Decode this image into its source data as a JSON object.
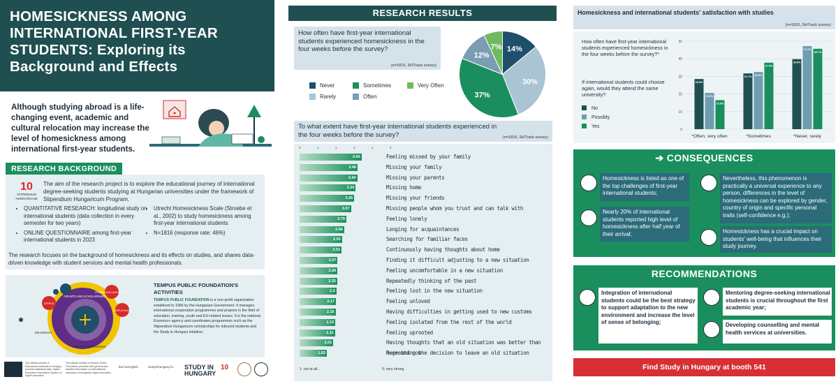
{
  "title": "HOMESICKNESS AMONG INTERNATIONAL FIRST-YEAR STUDENTS: Exploring its Background and Effects",
  "intro": "Although studying abroad is a life-changing event, academic and cultural relocation may increase the level of homesickness among international first-year students.",
  "research_background": {
    "heading": "RESEARCH BACKGROUND",
    "logo_number": "10",
    "logo_caption": "STIPENDIUM HUNGARICUM",
    "aim": "The aim of the research project is to explore the educational journey of international degree-seeking students studying at Hungarian universities under the framework of Stipendium Hungaricum Program.",
    "bullets_left": [
      "QUANTITATIVE RESEARCH: longitudinal study on international students (data collection in every semester for two years)",
      "ONLINE QUESTIONNAIRE among first-year international students in 2023"
    ],
    "bullets_right": [
      "Utrecht Homesickness Scale (Stroebe et al., 2002) to study homesickness among first-year international students",
      "N=1816 (response rate: 46%)"
    ],
    "footer": "The research focuses on the background of homesickness and its effects on studies, and shares data-driven knowledge with student services and mental health professionals."
  },
  "tempus": {
    "title": "TEMPUS PUBLIC FOUNDATION'S ACTIVITIES",
    "text_lead": "TEMPUS PUBLIC FOUNDATION",
    "text": " is a non-profit organisation establised in 1996 by the Hungarian Government. It manages international cooperation programmes and projects in the field of education, training, youth and EU-related issues. It is the national Erasmus+ agency and coordinates programmes such as the Stipendium Hungaricum scholarships for inbound students and the Study in Hungary initiative.",
    "circle_center": "GRANTS AND SCHOLARSHIPS",
    "circle_knowledge": "KNOWLEDGE SHARING",
    "circle_erasmus": "ERASMUS+",
    "circle_stipendium": "STIPENDIUM HUNGARICUM",
    "circle_campus": "CAMPUS MUNDI",
    "circle_ceepus": "CEEPUS"
  },
  "footer": {
    "small_left": "The official website of Educational Authority in Hungary provides statistical data, Higher Education Information System on higher education.",
    "small_left2": "The official website of Tempus Public Foundation provides both general and detailed information on international education of Hungarian higher education.",
    "url1": "tka.hu/english",
    "url2": "studyinhungary.hu",
    "study_in": "STUDY IN",
    "hungary": "HUNGARY",
    "logo10": "10"
  },
  "results": {
    "heading": "RESEARCH RESULTS",
    "q1": "How often have first-year international students experienced homesickness in the four weeks before the survey?",
    "q1_src": "(n=1816, SHTrack survey)",
    "legend": [
      {
        "label": "Never",
        "color": "#1f4f6b"
      },
      {
        "label": "Sometimes",
        "color": "#1a8f5d"
      },
      {
        "label": "Very Often",
        "color": "#6fba5e"
      },
      {
        "label": "Rarely",
        "color": "#a9c4d3"
      },
      {
        "label": "Often",
        "color": "#7a9db3"
      }
    ],
    "q2": "To what extent have first-year international students experienced in the four weeks before the survey?",
    "q2_src": "(n=1816, SHTrack survey)",
    "scale_ticks": [
      "0",
      "1",
      "2",
      "3",
      "4",
      "5"
    ],
    "scale_low": "1: not at all...",
    "scale_high": "5: very strong"
  },
  "chart_data": [
    {
      "type": "pie",
      "categories": [
        "Never",
        "Rarely",
        "Sometimes",
        "Often",
        "Very Often"
      ],
      "values": [
        14,
        30,
        37,
        12,
        7
      ],
      "labels": [
        "14%",
        "30%",
        "37%",
        "12%",
        "7%"
      ]
    },
    {
      "type": "bar",
      "orientation": "horizontal",
      "xlim": [
        0,
        5
      ],
      "categories": [
        "Feeling missed by your family",
        "Missing your family",
        "Missing your parents",
        "Missing home",
        "Missing your friends",
        "Missing people whom you trust and can talk with",
        "Feeling lonely",
        "Longing for acquaintances",
        "Searching for familiar faces",
        "Continuously having thoughts about home",
        "Finding it difficult adjusting to a new situation",
        "Feeling uncomfortable in a new situation",
        "Repeatedly thinking of the past",
        "Feeling lost in the new situation",
        "Feeling unloved",
        "Having difficulties in getting used to new customs",
        "Feeling isolated from the rest of the world",
        "Feeling uprooted",
        "Having thoughts that an old situation was better than here and now",
        "Regretting the decision to leave an old situation"
      ],
      "values": [
        3.69,
        3.46,
        3.44,
        3.34,
        3.26,
        3.07,
        2.79,
        2.66,
        2.53,
        2.51,
        2.27,
        2.26,
        2.25,
        2.2,
        2.17,
        2.15,
        2.13,
        2.11,
        2.01,
        1.63
      ],
      "value_labels": [
        "3.69",
        "3.46",
        "3.44",
        "3.34",
        "3.26",
        "3.07",
        "2.79",
        "2.66",
        "2.53",
        "2.51",
        "2.27",
        "2.26",
        "2.25",
        "2.2",
        "2.17",
        "2.15",
        "2.13",
        "2.11",
        "2.01",
        "1.63"
      ]
    },
    {
      "type": "bar",
      "title": "Homesickness and international students' satisfaction with studies",
      "ylim": [
        0,
        50
      ],
      "yticks": [
        "0",
        "10",
        "20",
        "30",
        "40",
        "50"
      ],
      "categories": [
        "*Often, very often",
        "*Sometimes",
        "*Never, rarely"
      ],
      "series": [
        {
          "name": "No",
          "color": "#1f4f51",
          "values": [
            28.5,
            31.7,
            39.8
          ],
          "labels": [
            "28.5%",
            "31.7%",
            "39.8%"
          ]
        },
        {
          "name": "Possibly",
          "color": "#6f9db0",
          "values": [
            20.6,
            32.5,
            47.2
          ],
          "labels": [
            "20.6%",
            "32.5%",
            "47.2%"
          ]
        },
        {
          "name": "Yes",
          "color": "#1a8f5d",
          "values": [
            16.5,
            37.8,
            45.7
          ],
          "labels": [
            "16.5%",
            "37.8%",
            "45.7%"
          ]
        }
      ]
    }
  ],
  "satisfaction": {
    "title": "Homesickness and international students' satisfaction with studies",
    "src": "(n=1816, SHTrack survey)",
    "q1": "How often have first-year international students experienced homesickness in the four weeks before the survey?*",
    "q2": "If international students could choose again, would they attend the same university?",
    "legend": [
      "No",
      "Possibly",
      "Yes"
    ]
  },
  "consequences": {
    "heading": "CONSEQUENCES",
    "arrow": "➔",
    "items": [
      "Homesickness is listed as one of the top challenges of first-year international students;",
      "Nearly 20% of international students reported high level of homesickness after half year of their arrival;",
      "Nevertheless, this phenomenon is practically a universal experience to any person, differences in the level of homesickness can be explored by gender, country of origin and specific personal traits (self-confidence e.g.);",
      "Homesickness has a crucial impact on students' well-being that influences their study journey."
    ]
  },
  "recommendations": {
    "heading": "RECOMMENDATIONS",
    "items": [
      "Integration of international students could be the best strategy to support adaptation to the new environment and increase the level of sense of belonging;",
      "Mentoring degree-seeking international students is crucial throughout the first academic year;",
      "Developing counselling and mental health services at universities."
    ]
  },
  "booth": "Find Study in Hungary at booth 541"
}
